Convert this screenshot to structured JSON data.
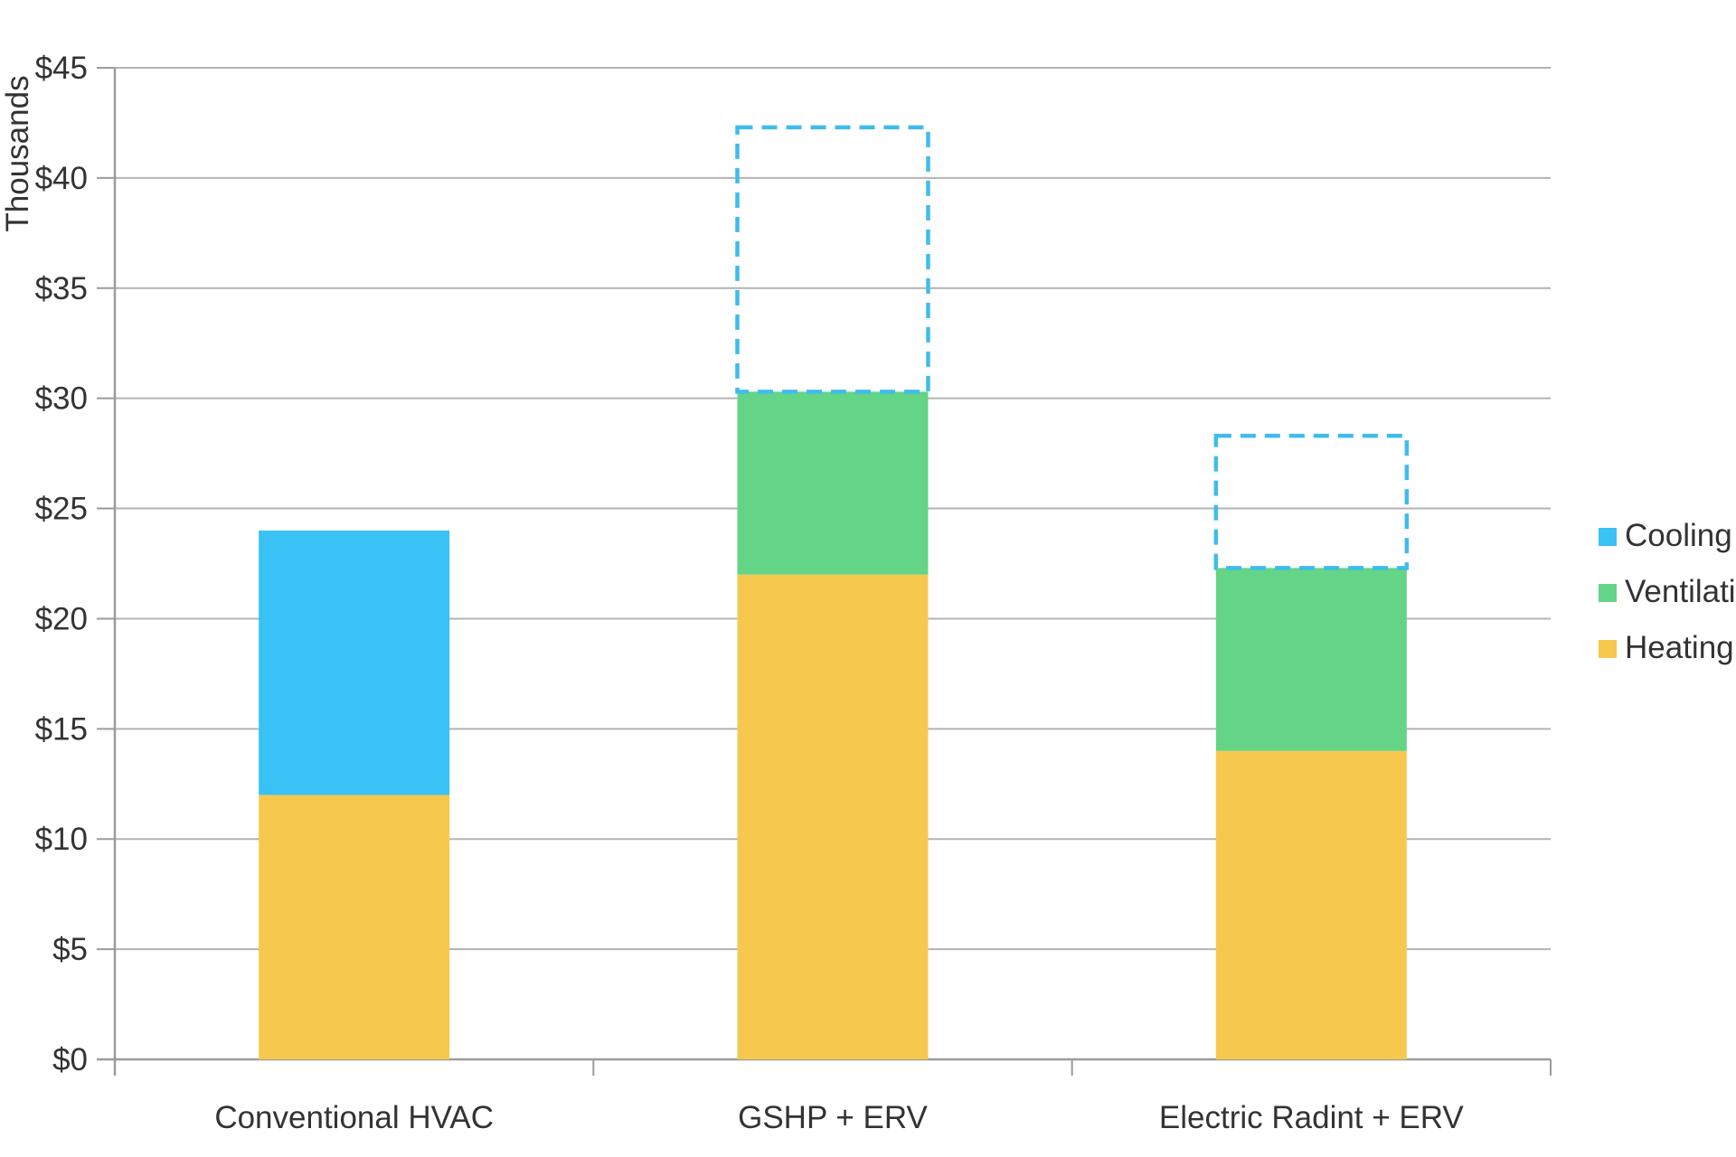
{
  "chart_data": {
    "type": "bar",
    "stacked": true,
    "title": "",
    "xlabel": "",
    "ylabel": "Thousands",
    "ylim": [
      0,
      45
    ],
    "grid": true,
    "legend_position": "right",
    "yticks": [
      {
        "value": 0,
        "label": "$0"
      },
      {
        "value": 5,
        "label": "$5"
      },
      {
        "value": 10,
        "label": "$10"
      },
      {
        "value": 15,
        "label": "$15"
      },
      {
        "value": 20,
        "label": "$20"
      },
      {
        "value": 25,
        "label": "$25"
      },
      {
        "value": 30,
        "label": "$30"
      },
      {
        "value": 35,
        "label": "$35"
      },
      {
        "value": 40,
        "label": "$40"
      },
      {
        "value": 45,
        "label": "$45"
      }
    ],
    "categories": [
      "Conventional HVAC",
      "GSHP + ERV",
      "Electric Radint + ERV"
    ],
    "series": [
      {
        "name": "Heating",
        "color": "#f6c94e",
        "values": [
          12,
          22,
          14
        ]
      },
      {
        "name": "Ventilation",
        "color": "#64d487",
        "values": [
          0,
          8.3,
          8.3
        ]
      },
      {
        "name": "Cooling",
        "color": "#3ac1f5",
        "values": [
          12,
          0,
          0
        ]
      }
    ],
    "dashed_series": {
      "name": "Cooling (dashed outline)",
      "color": "#3fbcec",
      "values": [
        0,
        12,
        6
      ]
    },
    "stack_totals_solid": [
      24,
      30.3,
      22.3
    ],
    "stack_totals_with_dashed": [
      24,
      42.3,
      28.3
    ],
    "legend": [
      {
        "label": "Cooling",
        "color": "#3ac1f5"
      },
      {
        "label": "Ventilation",
        "color": "#64d487"
      },
      {
        "label": "Heating",
        "color": "#f6c94e"
      }
    ],
    "colors": {
      "text": "#333333",
      "gridline": "#b3b3b3",
      "axis": "#9b9b9b",
      "background": "#ffffff"
    }
  }
}
